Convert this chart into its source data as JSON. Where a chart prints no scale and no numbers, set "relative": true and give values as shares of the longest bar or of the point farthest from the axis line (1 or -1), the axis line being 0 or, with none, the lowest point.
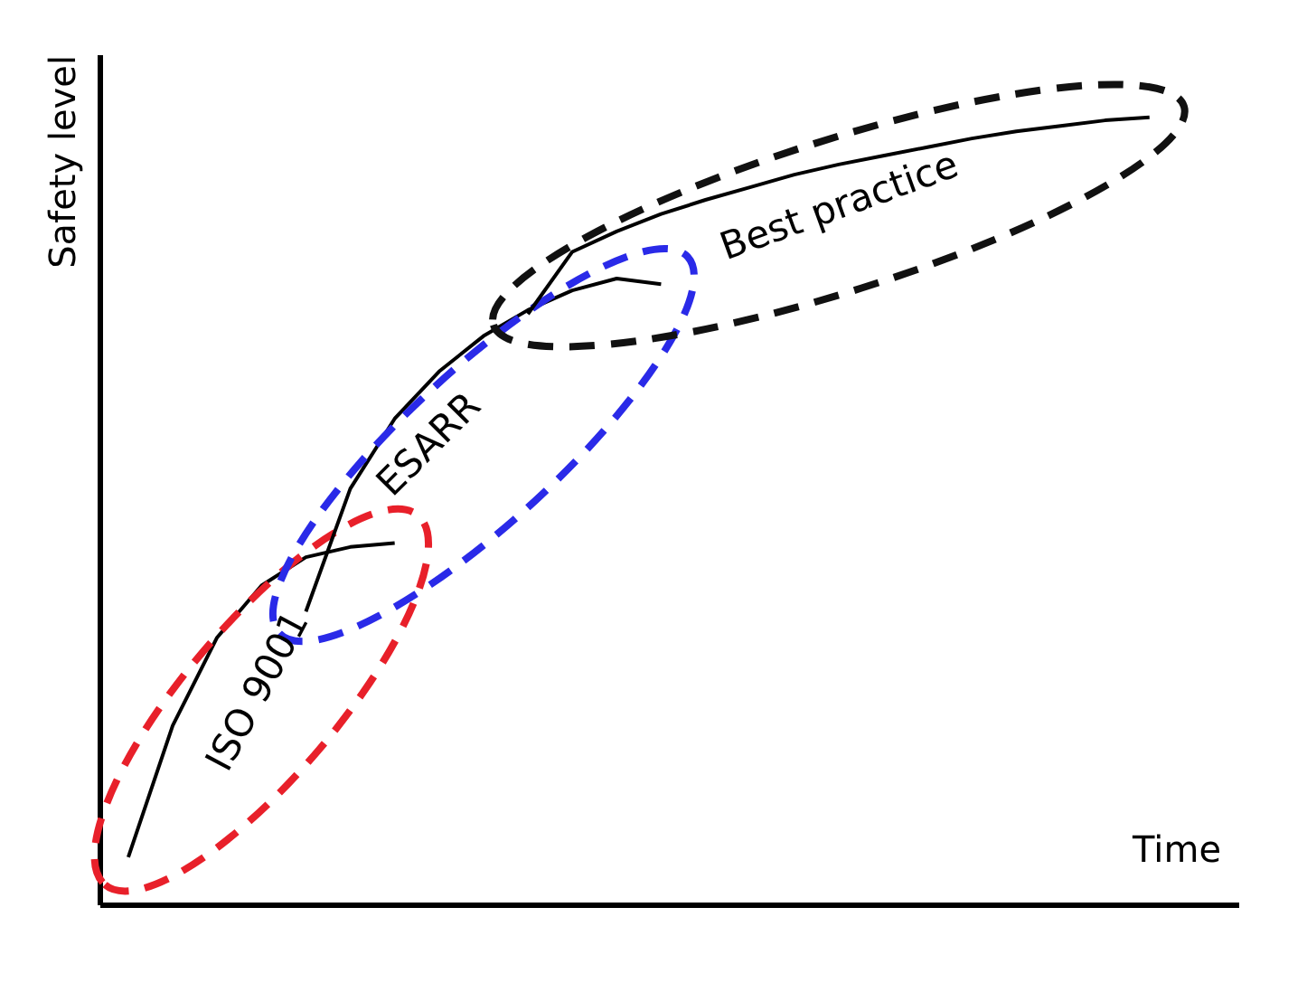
{
  "chart_data": {
    "type": "line",
    "relative": true,
    "xlabel": "Time",
    "ylabel": "Safety level",
    "marker": "none",
    "line_style": "solid",
    "categories": [
      null,
      null,
      null,
      null,
      null,
      null,
      null,
      null,
      null,
      null,
      null,
      null,
      null,
      null,
      null,
      null,
      null,
      null,
      null,
      null,
      null,
      null,
      null,
      null
    ],
    "series": [
      {
        "color": "#000000",
        "values": [
          0.06,
          0.227,
          0.339,
          0.405,
          0.441,
          0.454,
          0.459,
          null,
          null,
          null,
          null,
          null,
          null,
          null,
          null,
          null,
          null,
          null,
          null,
          null,
          null,
          null,
          null,
          null
        ]
      },
      {
        "color": "#000000",
        "values": [
          null,
          null,
          null,
          null,
          0.372,
          0.528,
          0.617,
          0.677,
          0.722,
          0.755,
          0.78,
          0.795,
          0.788,
          null,
          null,
          null,
          null,
          null,
          null,
          null,
          null,
          null,
          null,
          null
        ]
      },
      {
        "color": "#000000",
        "values": [
          null,
          null,
          null,
          null,
          null,
          null,
          null,
          null,
          null,
          0.75,
          0.829,
          0.855,
          0.877,
          0.895,
          0.911,
          0.927,
          0.94,
          0.951,
          0.962,
          0.973,
          0.982,
          0.989,
          0.996,
          1.0
        ]
      }
    ],
    "annotations": [
      "ISO 9001",
      "ESARR",
      "Best practice"
    ]
  }
}
